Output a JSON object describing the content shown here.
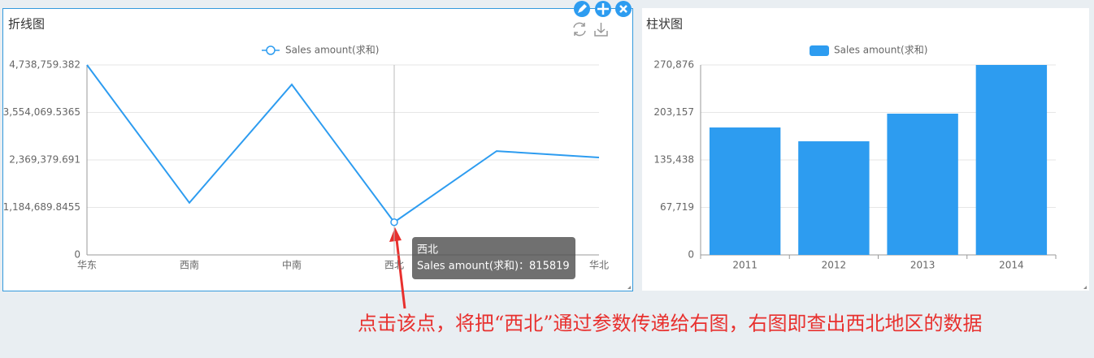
{
  "annotation": "点击该点，将把“西北”通过参数传递给右图，右图即查出西北地区的数据",
  "tooltip": {
    "title": "西北",
    "text": "Sales amount(求和)：815819"
  },
  "chart_data": [
    {
      "type": "line",
      "title": "折线图",
      "categories": [
        "华东",
        "西南",
        "中南",
        "西北",
        null,
        "华北"
      ],
      "series": [
        {
          "name": "Sales amount(求和)",
          "color": "#2d9cf0",
          "values": [
            4738759.382,
            1300000,
            4250000,
            815819,
            2590000,
            2430000
          ]
        }
      ],
      "ylim": [
        0,
        4738759.382
      ],
      "yticks": [
        0,
        {
          "value": 1184689.8455,
          "label": "1,184,689.8455"
        },
        {
          "value": 2369379.691,
          "label": "2,369,379.691"
        },
        {
          "value": 3554069.5365,
          "label": "3,554,069.5365"
        },
        {
          "value": 4738759.382,
          "label": "4,738,759.382"
        }
      ],
      "grid": true
    },
    {
      "type": "bar",
      "title": "柱状图",
      "categories": [
        "2011",
        "2012",
        "2013",
        "2014"
      ],
      "series": [
        {
          "name": "Sales amount(求和)",
          "color": "#2d9cf0",
          "values": [
            181700,
            162000,
            201400,
            270876
          ]
        }
      ],
      "ylim": [
        0,
        270876
      ],
      "yticks": [
        0,
        {
          "value": 67719,
          "label": "67,719"
        },
        {
          "value": 135438,
          "label": "135,438"
        },
        {
          "value": 203157,
          "label": "203,157"
        },
        {
          "value": 270876,
          "label": "270,876"
        }
      ],
      "grid": true
    }
  ]
}
